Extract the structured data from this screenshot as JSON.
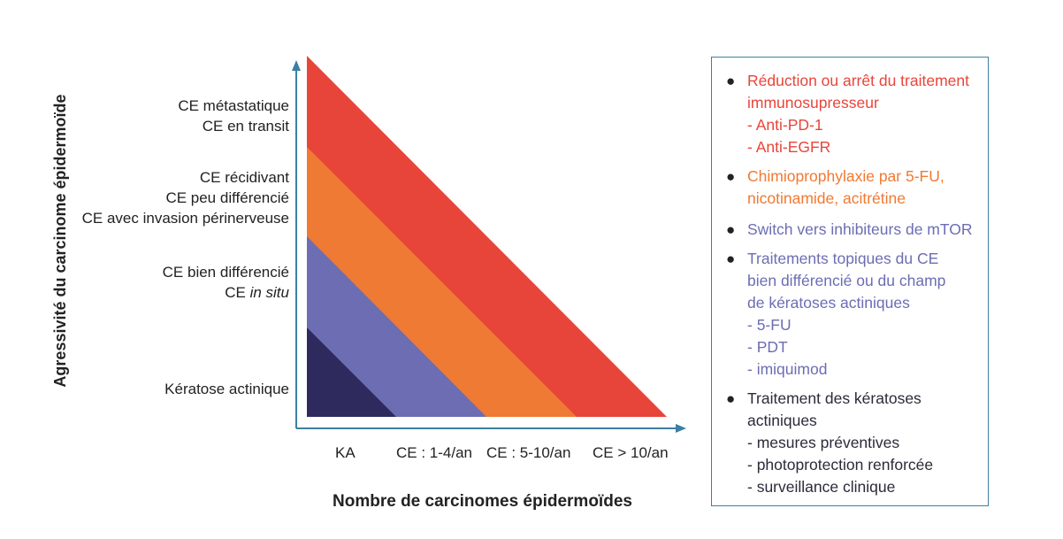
{
  "axis": {
    "y_title": "Agressivité du carcinome épidermoïde",
    "x_title": "Nombre de carcinomes épidermoïdes"
  },
  "rows": [
    {
      "lines": [
        "CE métastatique",
        "CE en transit"
      ]
    },
    {
      "lines": [
        "CE récidivant",
        "CE peu différencié",
        "CE avec invasion périnerveuse"
      ]
    },
    {
      "lines": [
        "CE bien différencié"
      ],
      "in_situ_prefix": "CE ",
      "in_situ_italic": "in situ"
    },
    {
      "lines": [
        "Kératose actinique"
      ]
    }
  ],
  "categories": [
    "KA",
    "CE : 1-4/an",
    "CE : 5-10/an",
    "CE > 10/an"
  ],
  "band_colors": [
    "#2e2a5e",
    "#6c6db3",
    "#ef7a33",
    "#e8453a"
  ],
  "axis_color": "#3c7fa3",
  "legend": {
    "items": [
      {
        "color": "#e8453a",
        "lines": [
          "Réduction ou arrêt du traitement",
          "immunosupresseur"
        ],
        "subs": [
          "-  Anti-PD-1",
          "-  Anti-EGFR"
        ]
      },
      {
        "color": "#ef7a33",
        "lines": [
          "Chimioprophylaxie par 5-FU,",
          "nicotinamide, acitrétine"
        ],
        "subs": []
      },
      {
        "color": "#6c6db3",
        "lines": [
          "Switch vers inhibiteurs de mTOR"
        ],
        "subs": []
      },
      {
        "color": "#6c6db3",
        "lines": [
          "Traitements topiques du CE",
          "bien différencié ou du champ",
          "de kératoses actiniques"
        ],
        "subs": [
          "-  5-FU",
          "-  PDT",
          "-  imiquimod"
        ]
      },
      {
        "color": "#2b2b3a",
        "lines": [
          "Traitement des kératoses",
          "actiniques"
        ],
        "subs": [
          "-  mesures préventives",
          "-  photoprotection renforcée",
          "-  surveillance clinique"
        ]
      }
    ]
  }
}
